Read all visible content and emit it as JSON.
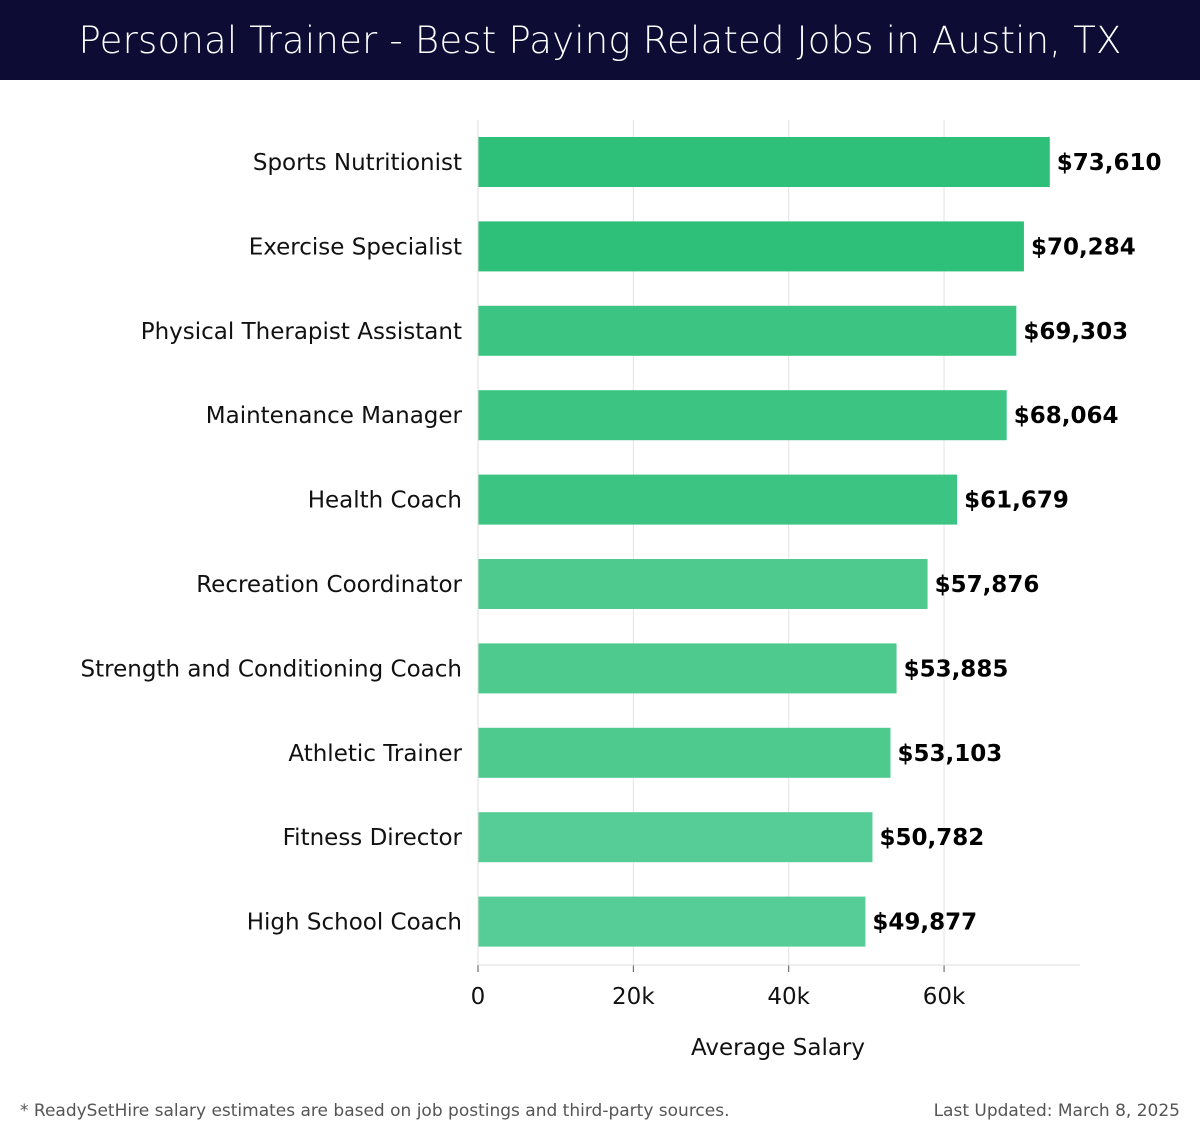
{
  "header": {
    "title": "Personal Trainer - Best Paying Related Jobs in Austin, TX"
  },
  "colors": {
    "header_bg": "#0d0c35",
    "bar_dark": "#2ebf78",
    "bar_light": "#56cd96",
    "grid": "#e3e3e3"
  },
  "chart_data": {
    "type": "bar",
    "orientation": "horizontal",
    "categories": [
      "Sports Nutritionist",
      "Exercise Specialist",
      "Physical Therapist Assistant",
      "Maintenance Manager",
      "Health Coach",
      "Recreation Coordinator",
      "Strength and Conditioning Coach",
      "Athletic Trainer",
      "Fitness Director",
      "High School Coach"
    ],
    "values": [
      73610,
      70284,
      69303,
      68064,
      61679,
      57876,
      53885,
      53103,
      50782,
      49877
    ],
    "value_labels": [
      "$73,610",
      "$70,284",
      "$69,303",
      "$68,064",
      "$61,679",
      "$57,876",
      "$53,885",
      "$53,103",
      "$50,782",
      "$49,877"
    ],
    "xlabel": "Average Salary",
    "ylabel": "",
    "xlim": [
      0,
      77500
    ],
    "xticks": [
      0,
      20000,
      40000,
      60000
    ],
    "xtick_labels": [
      "0",
      "20k",
      "40k",
      "60k"
    ],
    "grid": "vertical"
  },
  "footer": {
    "note": "* ReadySetHire salary estimates are based on job postings and third-party sources.",
    "updated": "Last Updated: March 8, 2025"
  }
}
